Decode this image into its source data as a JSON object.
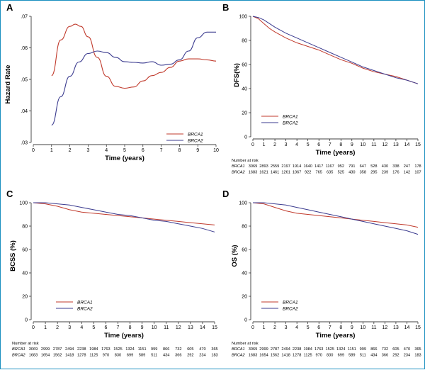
{
  "colors": {
    "brca1": "#c0392b",
    "brca2": "#3b3b8f",
    "frame": "#1a8fc0"
  },
  "chart_data": [
    {
      "id": "A",
      "type": "line",
      "panel_label": "A",
      "xlabel": "Time (years)",
      "ylabel": "Hazard Rate",
      "xlim": [
        0,
        10
      ],
      "ylim": [
        0.03,
        0.07
      ],
      "xticks": [
        0,
        1,
        2,
        3,
        4,
        5,
        6,
        7,
        8,
        9,
        10
      ],
      "yticks": [
        0.03,
        0.04,
        0.05,
        0.06,
        0.07
      ],
      "ytick_labels": [
        ".03",
        ".04",
        ".05",
        ".06",
        ".07"
      ],
      "legend_position": "bottom-right",
      "series": [
        {
          "name": "BRCA1",
          "color_key": "brca1",
          "x": [
            1.0,
            1.5,
            2.0,
            2.3,
            2.6,
            3.0,
            3.5,
            4.0,
            4.5,
            5.0,
            5.5,
            6.0,
            6.5,
            7.0,
            7.5,
            8.0,
            8.5,
            9.0,
            9.5,
            10.0
          ],
          "y": [
            0.0512,
            0.0625,
            0.0668,
            0.0675,
            0.0668,
            0.0635,
            0.057,
            0.051,
            0.0478,
            0.0472,
            0.0476,
            0.0495,
            0.0512,
            0.0522,
            0.0538,
            0.0558,
            0.0565,
            0.0565,
            0.0562,
            0.0558
          ]
        },
        {
          "name": "BRCA2",
          "color_key": "brca2",
          "x": [
            1.0,
            1.5,
            2.0,
            2.5,
            3.0,
            3.5,
            4.0,
            4.5,
            5.0,
            5.5,
            6.0,
            6.5,
            7.0,
            7.5,
            8.0,
            8.5,
            9.0,
            9.5,
            10.0
          ],
          "y": [
            0.0355,
            0.0445,
            0.051,
            0.0555,
            0.0582,
            0.059,
            0.0585,
            0.057,
            0.0556,
            0.0554,
            0.0552,
            0.0556,
            0.0545,
            0.0548,
            0.0562,
            0.059,
            0.0632,
            0.065,
            0.065
          ]
        }
      ]
    },
    {
      "id": "B",
      "type": "line",
      "panel_label": "B",
      "xlabel": "Time (years)",
      "ylabel": "DFS(%)",
      "xlim": [
        0,
        15
      ],
      "ylim": [
        0,
        100
      ],
      "xticks": [
        0,
        1,
        2,
        3,
        4,
        5,
        6,
        7,
        8,
        9,
        10,
        11,
        12,
        13,
        14,
        15
      ],
      "yticks": [
        0,
        20,
        40,
        60,
        80,
        100
      ],
      "legend_position": "bottom-left",
      "series": [
        {
          "name": "BRCA1",
          "color_key": "brca1",
          "x": [
            0,
            0.5,
            1,
            1.5,
            2,
            3,
            4,
            5,
            6,
            7,
            8,
            9,
            10,
            11,
            12,
            13,
            14,
            15
          ],
          "y": [
            100,
            98,
            94,
            90,
            87,
            82,
            78,
            75,
            72,
            68,
            64,
            61,
            57,
            54,
            52,
            50,
            47,
            44
          ]
        },
        {
          "name": "BRCA2",
          "color_key": "brca2",
          "x": [
            0,
            0.5,
            1,
            1.5,
            2,
            3,
            4,
            5,
            6,
            7,
            8,
            9,
            10,
            11,
            12,
            13,
            14,
            15
          ],
          "y": [
            100,
            99,
            97,
            94,
            91,
            86,
            82,
            78,
            74,
            70,
            66,
            62,
            58,
            55,
            52,
            49,
            47,
            44
          ]
        }
      ],
      "risk_table": {
        "title": "Number at risk",
        "rows": [
          {
            "label": "BRCA1",
            "values": [
              "3069",
              "2893",
              "2559",
              "2197",
              "1914",
              "1640",
              "1417",
              "1167",
              "952",
              "791",
              "647",
              "528",
              "430",
              "338",
              "247",
              "178"
            ]
          },
          {
            "label": "BRCA2",
            "values": [
              "1683",
              "1621",
              "1461",
              "1261",
              "1067",
              "922",
              "765",
              "635",
              "525",
              "430",
              "358",
              "295",
              "239",
              "176",
              "142",
              "107"
            ]
          }
        ]
      }
    },
    {
      "id": "C",
      "type": "line",
      "panel_label": "C",
      "xlabel": "Time (years)",
      "ylabel": "BCSS (%)",
      "xlim": [
        0,
        15
      ],
      "ylim": [
        0,
        100
      ],
      "xticks": [
        0,
        1,
        2,
        3,
        4,
        5,
        6,
        7,
        8,
        9,
        10,
        11,
        12,
        13,
        14,
        15
      ],
      "yticks": [
        0,
        20,
        40,
        60,
        80,
        100
      ],
      "legend_position": "bottom-left",
      "series": [
        {
          "name": "BRCA1",
          "color_key": "brca1",
          "x": [
            0,
            1,
            2,
            3,
            4,
            5,
            6,
            7,
            8,
            9,
            10,
            11,
            12,
            13,
            14,
            15
          ],
          "y": [
            100,
            99,
            97,
            94,
            92,
            91,
            90,
            89,
            88,
            87,
            86,
            85,
            84,
            83,
            82,
            81
          ]
        },
        {
          "name": "BRCA2",
          "color_key": "brca2",
          "x": [
            0,
            1,
            2,
            3,
            4,
            5,
            6,
            7,
            8,
            9,
            10,
            11,
            12,
            13,
            14,
            15
          ],
          "y": [
            100,
            100,
            99,
            98,
            96,
            94,
            92,
            90,
            89,
            87,
            85,
            84,
            82,
            80,
            78,
            75
          ]
        }
      ],
      "risk_table": {
        "title": "Number at risk",
        "rows": [
          {
            "label": "BRCA1",
            "values": [
              "3069",
              "2999",
              "2787",
              "2494",
              "2238",
              "1984",
              "1763",
              "1525",
              "1324",
              "1151",
              "999",
              "866",
              "732",
              "605",
              "470",
              "365"
            ]
          },
          {
            "label": "BRCA2",
            "values": [
              "1683",
              "1654",
              "1562",
              "1418",
              "1278",
              "1125",
              "970",
              "830",
              "699",
              "589",
              "511",
              "434",
              "366",
              "292",
              "234",
              "183"
            ]
          }
        ]
      }
    },
    {
      "id": "D",
      "type": "line",
      "panel_label": "D",
      "xlabel": "Time (years)",
      "ylabel": "OS (%)",
      "xlim": [
        0,
        15
      ],
      "ylim": [
        0,
        100
      ],
      "xticks": [
        0,
        1,
        2,
        3,
        4,
        5,
        6,
        7,
        8,
        9,
        10,
        11,
        12,
        13,
        14,
        15
      ],
      "yticks": [
        0,
        20,
        40,
        60,
        80,
        100
      ],
      "legend_position": "bottom-left",
      "series": [
        {
          "name": "BRCA1",
          "color_key": "brca1",
          "x": [
            0,
            1,
            2,
            3,
            4,
            5,
            6,
            7,
            8,
            9,
            10,
            11,
            12,
            13,
            14,
            15
          ],
          "y": [
            100,
            99,
            96,
            93,
            91,
            90,
            89,
            88,
            87,
            86,
            85,
            84,
            83,
            82,
            81,
            79
          ]
        },
        {
          "name": "BRCA2",
          "color_key": "brca2",
          "x": [
            0,
            1,
            2,
            3,
            4,
            5,
            6,
            7,
            8,
            9,
            10,
            11,
            12,
            13,
            14,
            15
          ],
          "y": [
            100,
            100,
            99,
            98,
            96,
            94,
            92,
            90,
            88,
            86,
            84,
            82,
            80,
            78,
            76,
            73
          ]
        }
      ],
      "risk_table": {
        "title": "Number at risk",
        "rows": [
          {
            "label": "BRCA1",
            "values": [
              "3069",
              "2999",
              "2787",
              "2494",
              "2238",
              "1984",
              "1763",
              "1525",
              "1324",
              "1151",
              "999",
              "866",
              "732",
              "605",
              "470",
              "365"
            ]
          },
          {
            "label": "BRCA2",
            "values": [
              "1683",
              "1654",
              "1562",
              "1418",
              "1278",
              "1125",
              "970",
              "830",
              "699",
              "589",
              "511",
              "434",
              "366",
              "292",
              "234",
              "183"
            ]
          }
        ]
      }
    }
  ]
}
